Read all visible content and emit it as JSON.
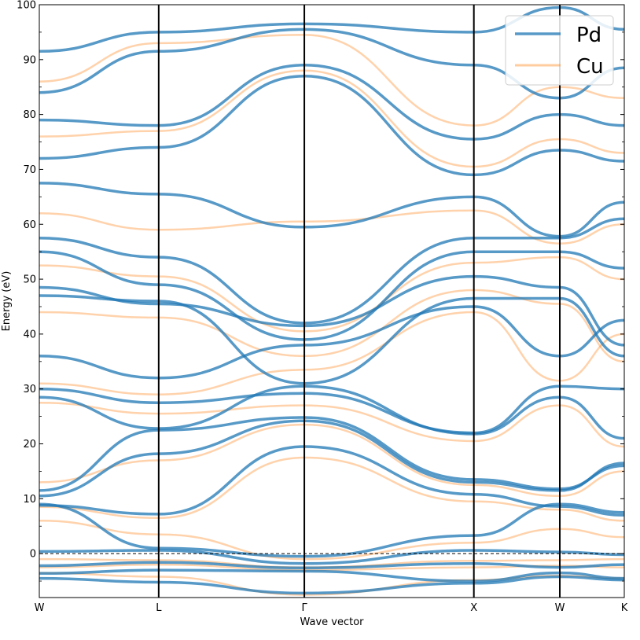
{
  "chart_data": {
    "type": "line",
    "title": "",
    "xlabel": "Wave vector",
    "ylabel": "Energy (eV)",
    "xlim": [
      0,
      4.9
    ],
    "ylim": [
      -8,
      100
    ],
    "grid": false,
    "legend_position": "top-right",
    "fermi_level": 0,
    "y_ticks": [
      0,
      10,
      20,
      30,
      40,
      50,
      60,
      70,
      80,
      90,
      100
    ],
    "x_ticks": [
      {
        "label": "W",
        "x": 0
      },
      {
        "label": "L",
        "x": 1.0
      },
      {
        "label": "Γ",
        "x": 2.22
      },
      {
        "label": "X",
        "x": 3.64
      },
      {
        "label": "W",
        "x": 4.36
      },
      {
        "label": "K",
        "x": 4.9
      }
    ],
    "series": [
      {
        "name": "Pd",
        "color": "#1f77b4",
        "opacity": 0.75,
        "bands": [
          [
            [
              0,
              -4.5
            ],
            [
              1.0,
              -5.2
            ],
            [
              2.22,
              -7.2
            ],
            [
              3.64,
              -5.4
            ],
            [
              4.36,
              -4.2
            ],
            [
              4.9,
              -4.8
            ]
          ],
          [
            [
              0,
              -3.6
            ],
            [
              1.0,
              -3.0
            ],
            [
              2.22,
              -3.2
            ],
            [
              3.64,
              -5.0
            ],
            [
              4.36,
              -3.5
            ],
            [
              4.9,
              -4.5
            ]
          ],
          [
            [
              0,
              -2.2
            ],
            [
              1.0,
              -1.6
            ],
            [
              2.22,
              -2.6
            ],
            [
              3.64,
              -1.8
            ],
            [
              4.36,
              -2.5
            ],
            [
              4.9,
              -2.0
            ]
          ],
          [
            [
              0,
              0.4
            ],
            [
              1.0,
              0.6
            ],
            [
              2.22,
              -1.8
            ],
            [
              3.64,
              0.6
            ],
            [
              4.36,
              0.3
            ],
            [
              4.9,
              -0.2
            ]
          ],
          [
            [
              0,
              9.0
            ],
            [
              1.0,
              1.0
            ],
            [
              2.22,
              -0.5
            ],
            [
              3.64,
              3.3
            ],
            [
              4.36,
              9.0
            ],
            [
              4.9,
              7.5
            ]
          ],
          [
            [
              0,
              8.8
            ],
            [
              1.0,
              7.2
            ],
            [
              2.22,
              19.5
            ],
            [
              3.64,
              10.8
            ],
            [
              4.36,
              8.6
            ],
            [
              4.9,
              7.0
            ]
          ],
          [
            [
              0,
              10.5
            ],
            [
              1.0,
              18.2
            ],
            [
              2.22,
              24.2
            ],
            [
              3.64,
              13.0
            ],
            [
              4.36,
              11.5
            ],
            [
              4.9,
              16.5
            ]
          ],
          [
            [
              0,
              11.5
            ],
            [
              1.0,
              22.5
            ],
            [
              2.22,
              24.8
            ],
            [
              3.64,
              13.5
            ],
            [
              4.36,
              11.8
            ],
            [
              4.9,
              16.0
            ]
          ],
          [
            [
              0,
              28.5
            ],
            [
              1.0,
              22.8
            ],
            [
              2.22,
              30.5
            ],
            [
              3.64,
              21.8
            ],
            [
              4.36,
              28.5
            ],
            [
              4.9,
              21.0
            ]
          ],
          [
            [
              0,
              30.0
            ],
            [
              1.0,
              27.5
            ],
            [
              2.22,
              29.2
            ],
            [
              3.64,
              22.0
            ],
            [
              4.36,
              30.5
            ],
            [
              4.9,
              30.0
            ]
          ],
          [
            [
              0,
              36.0
            ],
            [
              1.0,
              32.0
            ],
            [
              2.22,
              38.0
            ],
            [
              3.64,
              45.0
            ],
            [
              4.36,
              36.0
            ],
            [
              4.9,
              42.5
            ]
          ],
          [
            [
              0,
              47.0
            ],
            [
              1.0,
              46.0
            ],
            [
              2.22,
              31.0
            ],
            [
              3.64,
              46.5
            ],
            [
              4.36,
              46.5
            ],
            [
              4.9,
              36.0
            ]
          ],
          [
            [
              0,
              48.5
            ],
            [
              1.0,
              45.5
            ],
            [
              2.22,
              41.5
            ],
            [
              3.64,
              50.5
            ],
            [
              4.36,
              48.5
            ],
            [
              4.9,
              38.0
            ]
          ],
          [
            [
              0,
              55.0
            ],
            [
              1.0,
              49.0
            ],
            [
              2.22,
              39.0
            ],
            [
              3.64,
              55.0
            ],
            [
              4.36,
              55.0
            ],
            [
              4.9,
              52.0
            ]
          ],
          [
            [
              0,
              57.5
            ],
            [
              1.0,
              54.0
            ],
            [
              2.22,
              42.0
            ],
            [
              3.64,
              57.5
            ],
            [
              4.36,
              57.5
            ],
            [
              4.9,
              61.0
            ]
          ],
          [
            [
              0,
              67.5
            ],
            [
              1.0,
              65.5
            ],
            [
              2.22,
              59.5
            ],
            [
              3.64,
              65.0
            ],
            [
              4.36,
              57.8
            ],
            [
              4.9,
              64.0
            ]
          ],
          [
            [
              0,
              72.0
            ],
            [
              1.0,
              74.0
            ],
            [
              2.22,
              87.0
            ],
            [
              3.64,
              69.0
            ],
            [
              4.36,
              73.5
            ],
            [
              4.9,
              71.5
            ]
          ],
          [
            [
              0,
              79.0
            ],
            [
              1.0,
              78.0
            ],
            [
              2.22,
              89.0
            ],
            [
              3.64,
              75.5
            ],
            [
              4.36,
              80.0
            ],
            [
              4.9,
              78.0
            ]
          ],
          [
            [
              0,
              84.0
            ],
            [
              1.0,
              91.5
            ],
            [
              2.22,
              95.5
            ],
            [
              3.64,
              89.0
            ],
            [
              4.36,
              83.0
            ],
            [
              4.9,
              88.5
            ]
          ],
          [
            [
              0,
              91.5
            ],
            [
              1.0,
              95.0
            ],
            [
              2.22,
              96.5
            ],
            [
              3.64,
              95.0
            ],
            [
              4.36,
              99.5
            ],
            [
              4.9,
              95.5
            ]
          ]
        ]
      },
      {
        "name": "Cu",
        "color": "#ff7f0e",
        "opacity": 0.35,
        "bands": [
          [
            [
              0,
              -3.5
            ],
            [
              1.0,
              -4.2
            ],
            [
              2.22,
              -7.5
            ],
            [
              3.64,
              -4.8
            ],
            [
              4.36,
              -4.0
            ],
            [
              4.9,
              -4.5
            ]
          ],
          [
            [
              0,
              -2.5
            ],
            [
              1.0,
              -2.0
            ],
            [
              2.22,
              -3.0
            ],
            [
              3.64,
              -2.5
            ],
            [
              4.36,
              -2.2
            ],
            [
              4.9,
              -2.5
            ]
          ],
          [
            [
              0,
              -1.0
            ],
            [
              1.0,
              -1.2
            ],
            [
              2.22,
              -2.5
            ],
            [
              3.64,
              -1.3
            ],
            [
              4.36,
              -1.2
            ],
            [
              4.9,
              -1.0
            ]
          ],
          [
            [
              0,
              6.0
            ],
            [
              1.0,
              3.5
            ],
            [
              2.22,
              -1.0
            ],
            [
              3.64,
              2.0
            ],
            [
              4.36,
              4.5
            ],
            [
              4.9,
              3.0
            ]
          ],
          [
            [
              0,
              8.5
            ],
            [
              1.0,
              6.5
            ],
            [
              2.22,
              17.5
            ],
            [
              3.64,
              9.5
            ],
            [
              4.36,
              8.0
            ],
            [
              4.9,
              6.0
            ]
          ],
          [
            [
              0,
              13.0
            ],
            [
              1.0,
              17.0
            ],
            [
              2.22,
              23.5
            ],
            [
              3.64,
              12.5
            ],
            [
              4.36,
              10.5
            ],
            [
              4.9,
              15.0
            ]
          ],
          [
            [
              0,
              27.5
            ],
            [
              1.0,
              25.5
            ],
            [
              2.22,
              27.0
            ],
            [
              3.64,
              20.5
            ],
            [
              4.36,
              27.0
            ],
            [
              4.9,
              19.5
            ]
          ],
          [
            [
              0,
              31.0
            ],
            [
              1.0,
              29.0
            ],
            [
              2.22,
              33.5
            ],
            [
              3.64,
              44.0
            ],
            [
              4.36,
              31.5
            ],
            [
              4.9,
              40.0
            ]
          ],
          [
            [
              0,
              44.0
            ],
            [
              1.0,
              43.0
            ],
            [
              2.22,
              36.0
            ],
            [
              3.64,
              48.0
            ],
            [
              4.36,
              45.5
            ],
            [
              4.9,
              35.0
            ]
          ],
          [
            [
              0,
              52.5
            ],
            [
              1.0,
              50.5
            ],
            [
              2.22,
              40.5
            ],
            [
              3.64,
              53.0
            ],
            [
              4.36,
              54.0
            ],
            [
              4.9,
              50.0
            ]
          ],
          [
            [
              0,
              62.0
            ],
            [
              1.0,
              59.0
            ],
            [
              2.22,
              60.5
            ],
            [
              3.64,
              62.5
            ],
            [
              4.36,
              56.5
            ],
            [
              4.9,
              60.0
            ]
          ],
          [
            [
              0,
              76.0
            ],
            [
              1.0,
              77.0
            ],
            [
              2.22,
              88.0
            ],
            [
              3.64,
              70.5
            ],
            [
              4.36,
              75.5
            ],
            [
              4.9,
              73.0
            ]
          ],
          [
            [
              0,
              86.0
            ],
            [
              1.0,
              93.0
            ],
            [
              2.22,
              94.5
            ],
            [
              3.64,
              78.0
            ],
            [
              4.36,
              85.0
            ],
            [
              4.9,
              83.0
            ]
          ]
        ]
      }
    ]
  }
}
